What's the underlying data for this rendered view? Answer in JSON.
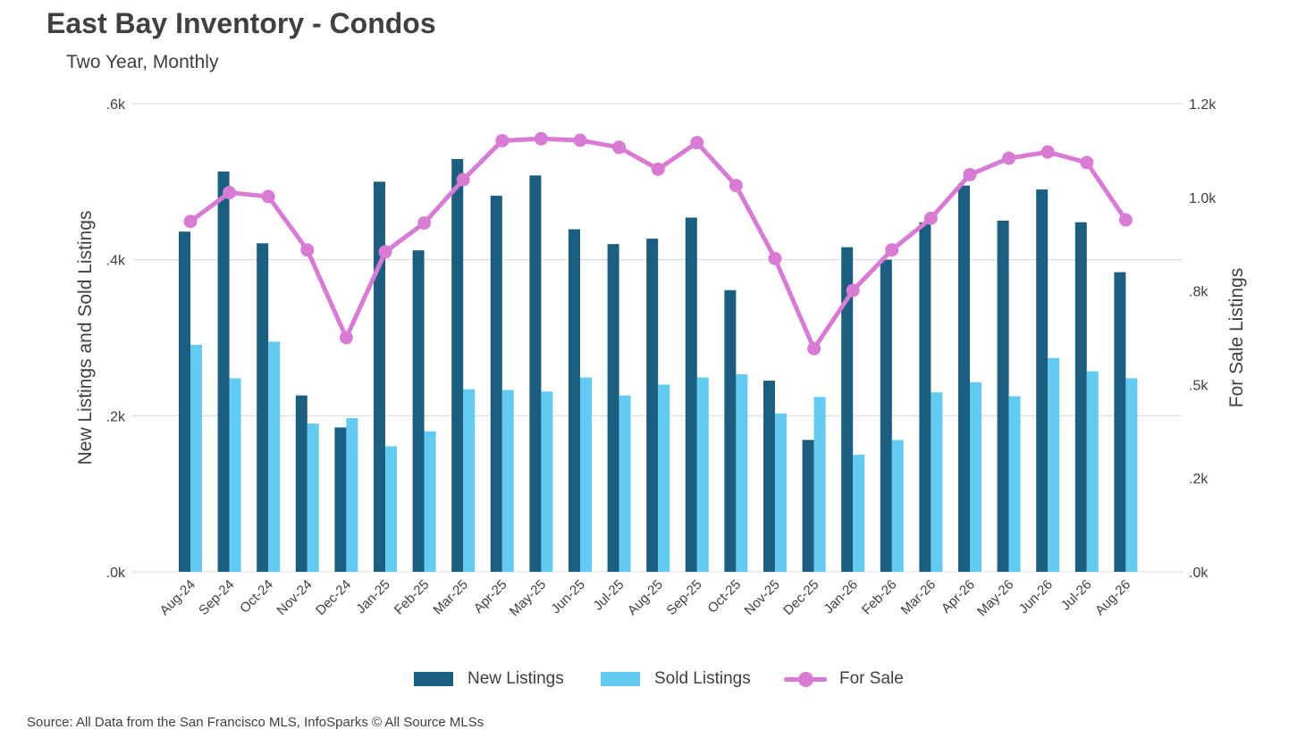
{
  "header": {
    "title": "East Bay Inventory - Condos",
    "subtitle": "Two Year, Monthly"
  },
  "footer": {
    "source": "Source: All Data from the San Francisco MLS, InfoSparks © All Source MLSs"
  },
  "colors": {
    "new_listings": "#1B5E80",
    "sold_listings": "#62CBF2",
    "for_sale": "#D97AD5",
    "grid": "#D9D9D9",
    "text": "#404040"
  },
  "chart_data": {
    "type": "bar",
    "categories": [
      "Aug-24",
      "Sep-24",
      "Oct-24",
      "Nov-24",
      "Dec-24",
      "Jan-25",
      "Feb-25",
      "Mar-25",
      "Apr-25",
      "May-25",
      "Jun-25",
      "Jul-25",
      "Aug-25",
      "Sep-25",
      "Oct-25",
      "Nov-25",
      "Dec-25",
      "Jan-26",
      "Feb-26",
      "Mar-26",
      "Apr-26",
      "May-26",
      "Jun-26",
      "Jul-26",
      "Aug-26"
    ],
    "left_axis": {
      "label": "New Listings and Sold Listings",
      "ticks": [
        ".0k",
        ".2k",
        ".4k",
        ".6k"
      ],
      "ylim": [
        0,
        600
      ]
    },
    "right_axis": {
      "label": "For Sale Listings",
      "ticks": [
        ".0k",
        ".2k",
        ".5k",
        ".8k",
        "1.0k",
        "1.2k"
      ],
      "ylim": [
        0,
        1200
      ]
    },
    "series": [
      {
        "name": "New Listings",
        "axis": "left",
        "kind": "bar",
        "values": [
          436,
          513,
          421,
          226,
          185,
          500,
          412,
          529,
          482,
          508,
          439,
          420,
          427,
          454,
          361,
          245,
          169,
          416,
          400,
          448,
          495,
          450,
          490,
          448,
          384
        ]
      },
      {
        "name": "Sold Listings",
        "axis": "left",
        "kind": "bar",
        "values": [
          291,
          248,
          295,
          190,
          197,
          161,
          180,
          234,
          233,
          231,
          249,
          226,
          240,
          249,
          253,
          203,
          224,
          150,
          169,
          230,
          243,
          225,
          274,
          257,
          248
        ]
      },
      {
        "name": "For Sale",
        "axis": "right",
        "kind": "line",
        "values": [
          898,
          972,
          962,
          825,
          600,
          820,
          894,
          1005,
          1105,
          1110,
          1106,
          1088,
          1032,
          1100,
          990,
          803,
          572,
          721,
          825,
          906,
          1018,
          1060,
          1076,
          1049,
          902
        ]
      }
    ],
    "legend": {
      "placement": "bottom",
      "entries": [
        "New Listings",
        "Sold Listings",
        "For Sale"
      ]
    },
    "grid": true
  }
}
